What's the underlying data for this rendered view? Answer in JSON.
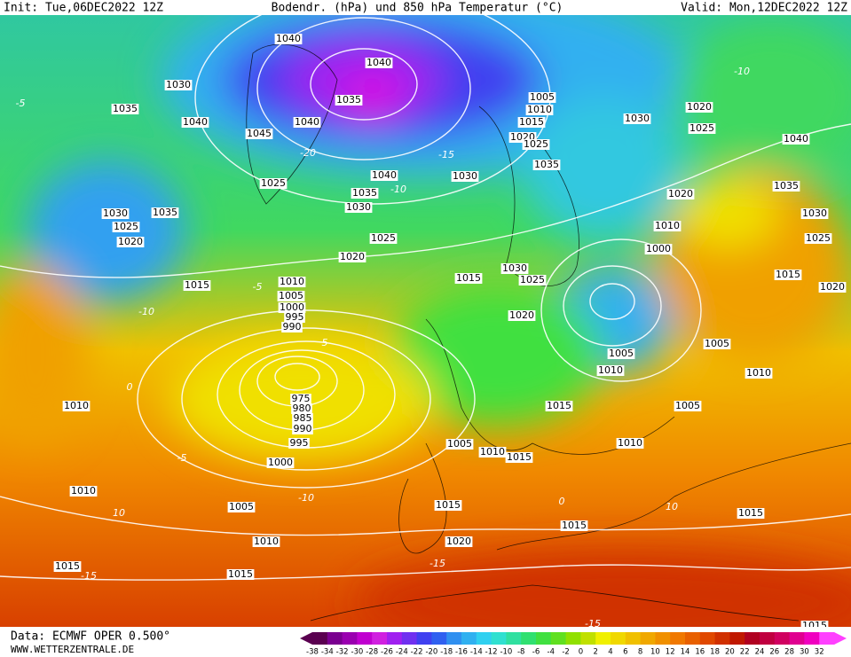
{
  "header": {
    "init": "Init: Tue,06DEC2022 12Z",
    "title": "Bodendr. (hPa) und 850 hPa Temperatur (°C)",
    "valid": "Valid: Mon,12DEC2022 12Z"
  },
  "footer": {
    "source": "Data: ECMWF OPER 0.500°",
    "website": "WWW.WETTERZENTRALE.DE"
  },
  "isobar_labels": [
    1040,
    1040,
    1030,
    1035,
    1040,
    1035,
    1040,
    1045,
    1025,
    1040,
    1035,
    1030,
    1030,
    1030,
    1035,
    1025,
    1020,
    1025,
    1020,
    1015,
    1010,
    1005,
    1000,
    995,
    990,
    975,
    980,
    985,
    990,
    995,
    1000,
    1010,
    1010,
    1005,
    1010,
    1015,
    1015,
    1020,
    1015,
    1015,
    1015,
    1005,
    1010,
    1015,
    1015,
    1010,
    1010,
    1005,
    1005,
    1005,
    1010,
    1015,
    1025,
    1030,
    1020,
    1000,
    1010,
    1020,
    1030,
    1025,
    1015,
    1020,
    1035,
    1040,
    1025,
    1020,
    1030,
    1005,
    1010,
    1015,
    1020,
    1025,
    1035,
    1015
  ],
  "temperature_labels": [
    -5,
    -10,
    -20,
    -15,
    -10,
    -5,
    0,
    5,
    -5,
    -10,
    10,
    10,
    -15,
    -10,
    0,
    -15,
    -15
  ],
  "colorbar": {
    "ticks": [
      -38,
      -34,
      -32,
      -30,
      -28,
      -26,
      -24,
      -22,
      -20,
      -18,
      -16,
      -14,
      -12,
      -10,
      -8,
      -6,
      -4,
      -2,
      0,
      2,
      4,
      6,
      8,
      10,
      12,
      14,
      16,
      18,
      20,
      22,
      24,
      26,
      28,
      30,
      32
    ],
    "colors": [
      "#5a0050",
      "#7a0090",
      "#9a00b0",
      "#c000d0",
      "#d020e0",
      "#a020f0",
      "#7030f0",
      "#4040f0",
      "#3060f0",
      "#3090f0",
      "#30b0f0",
      "#30d0f0",
      "#30e0d0",
      "#30e0a0",
      "#30e070",
      "#40e040",
      "#60e020",
      "#90e000",
      "#c0e000",
      "#f0f000",
      "#f0d800",
      "#f0c000",
      "#f0a800",
      "#f09000",
      "#f07800",
      "#e86000",
      "#e04800",
      "#d03000",
      "#c01800",
      "#b00020",
      "#c00040",
      "#d00060",
      "#e00090",
      "#f000c0",
      "#ff40ff"
    ]
  }
}
